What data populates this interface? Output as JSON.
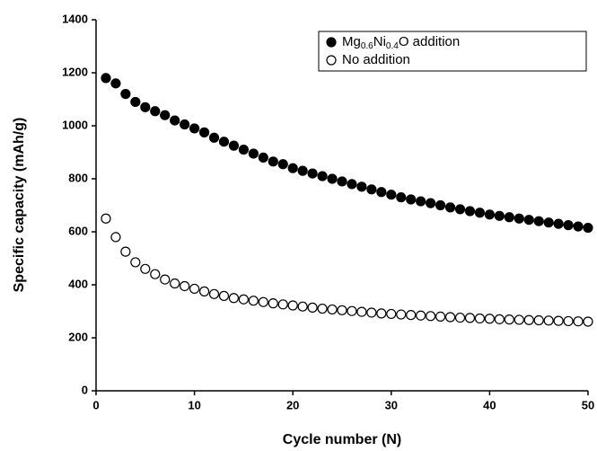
{
  "chart_data": {
    "type": "scatter",
    "xlabel": "Cycle number (N)",
    "ylabel": "Specific capacity (mAh/g)",
    "x": [
      1,
      2,
      3,
      4,
      5,
      6,
      7,
      8,
      9,
      10,
      11,
      12,
      13,
      14,
      15,
      16,
      17,
      18,
      19,
      20,
      21,
      22,
      23,
      24,
      25,
      26,
      27,
      28,
      29,
      30,
      31,
      32,
      33,
      34,
      35,
      36,
      37,
      38,
      39,
      40,
      41,
      42,
      43,
      44,
      45,
      46,
      47,
      48,
      49,
      50
    ],
    "series": [
      {
        "name": "Mg0.6Ni0.4O addition",
        "color": "#000000",
        "facecolor": "#000000",
        "values": [
          1180,
          1160,
          1120,
          1090,
          1070,
          1055,
          1040,
          1020,
          1005,
          990,
          975,
          955,
          940,
          925,
          910,
          895,
          880,
          865,
          855,
          840,
          830,
          820,
          810,
          800,
          790,
          780,
          770,
          760,
          750,
          740,
          730,
          722,
          715,
          708,
          700,
          692,
          685,
          678,
          672,
          665,
          660,
          655,
          650,
          645,
          640,
          635,
          630,
          625,
          620,
          615
        ]
      },
      {
        "name": "No addition",
        "color": "#000000",
        "facecolor": "none",
        "values": [
          650,
          580,
          525,
          485,
          460,
          440,
          420,
          405,
          395,
          385,
          375,
          365,
          358,
          350,
          345,
          340,
          335,
          330,
          326,
          322,
          318,
          314,
          310,
          307,
          304,
          301,
          298,
          295,
          292,
          290,
          288,
          286,
          284,
          282,
          280,
          278,
          276,
          275,
          273,
          272,
          270,
          269,
          268,
          267,
          266,
          265,
          264,
          263,
          262,
          261
        ]
      }
    ],
    "xlim": [
      0,
      50
    ],
    "xticks": [
      0,
      10,
      20,
      30,
      40,
      50
    ],
    "ylim": [
      0,
      1400
    ],
    "yticks": [
      0,
      200,
      400,
      600,
      800,
      1000,
      1200,
      1400
    ],
    "legend": "upper right"
  }
}
